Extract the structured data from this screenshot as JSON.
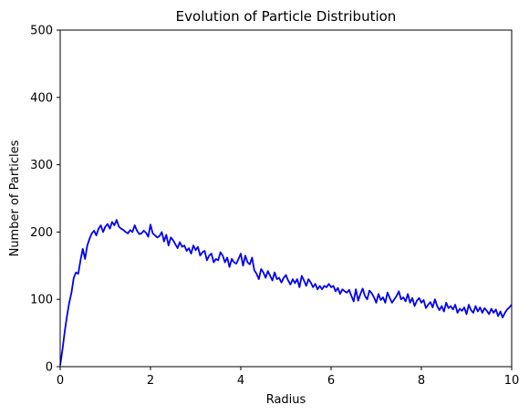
{
  "chart_data": {
    "type": "line",
    "title": "Evolution of Particle Distribution",
    "xlabel": "Radius",
    "ylabel": "Number of Particles",
    "xlim": [
      0,
      10
    ],
    "ylim": [
      0,
      500
    ],
    "xticks": [
      0,
      2,
      4,
      6,
      8,
      10
    ],
    "yticks": [
      0,
      100,
      200,
      300,
      400,
      500
    ],
    "grid": false,
    "series": [
      {
        "color": "#0000ee",
        "x": [
          0.0,
          0.05,
          0.1,
          0.15,
          0.2,
          0.25,
          0.3,
          0.35,
          0.4,
          0.45,
          0.5,
          0.55,
          0.6,
          0.65,
          0.7,
          0.75,
          0.8,
          0.85,
          0.9,
          0.95,
          1.0,
          1.05,
          1.1,
          1.15,
          1.2,
          1.25,
          1.3,
          1.35,
          1.4,
          1.45,
          1.5,
          1.55,
          1.6,
          1.65,
          1.7,
          1.75,
          1.8,
          1.85,
          1.9,
          1.95,
          2.0,
          2.05,
          2.1,
          2.15,
          2.2,
          2.25,
          2.3,
          2.35,
          2.4,
          2.45,
          2.5,
          2.55,
          2.6,
          2.65,
          2.7,
          2.75,
          2.8,
          2.85,
          2.9,
          2.95,
          3.0,
          3.05,
          3.1,
          3.15,
          3.2,
          3.25,
          3.3,
          3.35,
          3.4,
          3.45,
          3.5,
          3.55,
          3.6,
          3.65,
          3.7,
          3.75,
          3.8,
          3.85,
          3.9,
          3.95,
          4.0,
          4.05,
          4.1,
          4.15,
          4.2,
          4.25,
          4.3,
          4.35,
          4.4,
          4.45,
          4.5,
          4.55,
          4.6,
          4.65,
          4.7,
          4.75,
          4.8,
          4.85,
          4.9,
          4.95,
          5.0,
          5.05,
          5.1,
          5.15,
          5.2,
          5.25,
          5.3,
          5.35,
          5.4,
          5.45,
          5.5,
          5.55,
          5.6,
          5.65,
          5.7,
          5.75,
          5.8,
          5.85,
          5.9,
          5.95,
          6.0,
          6.05,
          6.1,
          6.15,
          6.2,
          6.25,
          6.3,
          6.35,
          6.4,
          6.45,
          6.5,
          6.55,
          6.6,
          6.65,
          6.7,
          6.75,
          6.8,
          6.85,
          6.9,
          6.95,
          7.0,
          7.05,
          7.1,
          7.15,
          7.2,
          7.25,
          7.3,
          7.35,
          7.4,
          7.45,
          7.5,
          7.55,
          7.6,
          7.65,
          7.7,
          7.75,
          7.8,
          7.85,
          7.9,
          7.95,
          8.0,
          8.05,
          8.1,
          8.15,
          8.2,
          8.25,
          8.3,
          8.35,
          8.4,
          8.45,
          8.5,
          8.55,
          8.6,
          8.65,
          8.7,
          8.75,
          8.8,
          8.85,
          8.9,
          8.95,
          9.0,
          9.05,
          9.1,
          9.15,
          9.2,
          9.25,
          9.3,
          9.35,
          9.4,
          9.45,
          9.5,
          9.55,
          9.6,
          9.65,
          9.7,
          9.75,
          9.8,
          9.85,
          9.9,
          9.95,
          10.0
        ],
        "y": [
          2,
          25,
          52,
          75,
          95,
          110,
          132,
          140,
          138,
          158,
          175,
          160,
          180,
          190,
          198,
          202,
          195,
          205,
          210,
          200,
          208,
          212,
          205,
          215,
          210,
          218,
          208,
          205,
          203,
          200,
          198,
          203,
          200,
          210,
          202,
          197,
          198,
          202,
          199,
          193,
          211,
          198,
          195,
          192,
          194,
          200,
          186,
          196,
          180,
          192,
          188,
          182,
          176,
          185,
          178,
          180,
          172,
          176,
          168,
          180,
          173,
          178,
          165,
          170,
          172,
          158,
          165,
          168,
          155,
          160,
          158,
          170,
          165,
          155,
          162,
          148,
          160,
          155,
          153,
          160,
          168,
          150,
          165,
          155,
          152,
          162,
          143,
          138,
          130,
          145,
          140,
          132,
          142,
          135,
          128,
          140,
          130,
          132,
          125,
          132,
          136,
          128,
          122,
          130,
          124,
          130,
          118,
          135,
          128,
          120,
          130,
          125,
          118,
          123,
          115,
          120,
          115,
          120,
          118,
          123,
          118,
          120,
          112,
          117,
          108,
          115,
          112,
          110,
          114,
          105,
          97,
          115,
          98,
          108,
          116,
          105,
          100,
          113,
          109,
          103,
          95,
          108,
          99,
          103,
          95,
          110,
          102,
          95,
          100,
          105,
          112,
          100,
          103,
          97,
          108,
          95,
          102,
          90,
          98,
          102,
          95,
          99,
          87,
          92,
          96,
          88,
          100,
          90,
          84,
          90,
          82,
          95,
          87,
          90,
          85,
          92,
          80,
          86,
          83,
          88,
          78,
          92,
          84,
          80,
          90,
          82,
          88,
          80,
          87,
          83,
          78,
          86,
          80,
          85,
          75,
          82,
          73,
          80,
          85,
          88,
          92
        ]
      }
    ]
  }
}
